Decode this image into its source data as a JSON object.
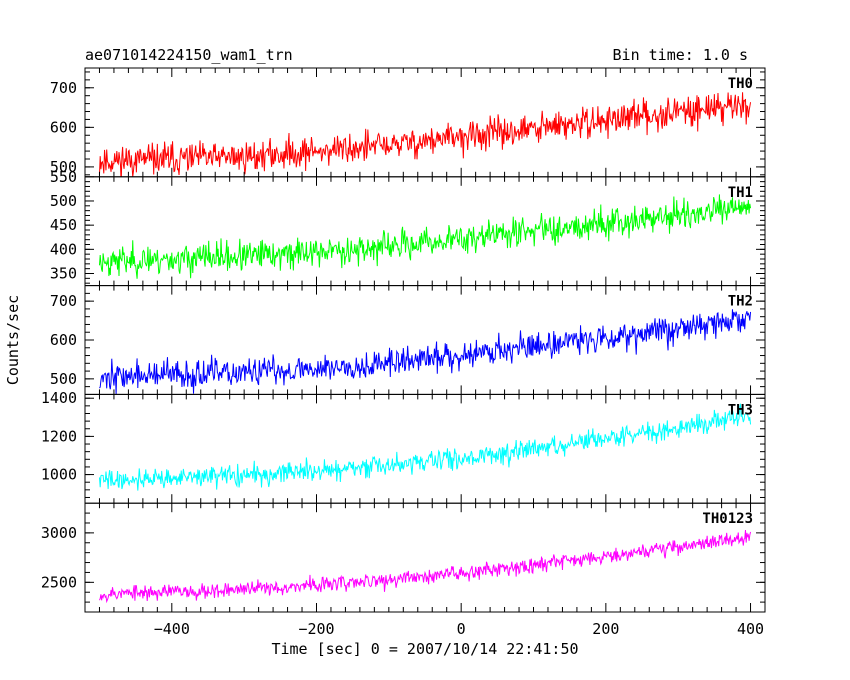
{
  "chart_data": {
    "type": "line",
    "title": "ae071014224150_wam1_trn",
    "bin_time_label": "Bin time: 1.0 s",
    "xlabel": "Time [sec] 0 = 2007/10/14 22:41:50",
    "ylabel": "Counts/sec",
    "x_range": [
      -500,
      400
    ],
    "xlim": [
      -520,
      420
    ],
    "x_ticks": [
      -400,
      -200,
      0,
      200,
      400
    ],
    "x_tick_labels": [
      "−400",
      "−200",
      "0",
      "200",
      "400"
    ],
    "grid": false,
    "panels": [
      {
        "name": "TH0",
        "color": "#ff0000",
        "ylim": [
          475,
          750
        ],
        "y_ticks": [
          500,
          600,
          700
        ],
        "y_tick_labels": [
          "500",
          "600",
          "700"
        ],
        "trend": [
          [
            -500,
            515
          ],
          [
            -300,
            525
          ],
          [
            -100,
            555
          ],
          [
            100,
            595
          ],
          [
            300,
            640
          ],
          [
            400,
            660
          ]
        ],
        "noise": 28,
        "seed": 11
      },
      {
        "name": "TH1",
        "color": "#00ff00",
        "ylim": [
          325,
          550
        ],
        "y_ticks": [
          350,
          400,
          450,
          500,
          550
        ],
        "y_tick_labels": [
          "350",
          "400",
          "450",
          "500",
          "550"
        ],
        "trend": [
          [
            -500,
            375
          ],
          [
            -300,
            385
          ],
          [
            -100,
            405
          ],
          [
            100,
            440
          ],
          [
            300,
            470
          ],
          [
            400,
            485
          ]
        ],
        "noise": 22,
        "seed": 23
      },
      {
        "name": "TH2",
        "color": "#0000ff",
        "ylim": [
          460,
          740
        ],
        "y_ticks": [
          500,
          600,
          700
        ],
        "y_tick_labels": [
          "500",
          "600",
          "700"
        ],
        "trend": [
          [
            -500,
            505
          ],
          [
            -300,
            515
          ],
          [
            -100,
            540
          ],
          [
            100,
            585
          ],
          [
            300,
            630
          ],
          [
            400,
            655
          ]
        ],
        "noise": 26,
        "seed": 37
      },
      {
        "name": "TH3",
        "color": "#00ffff",
        "ylim": [
          850,
          1420
        ],
        "y_ticks": [
          1000,
          1200,
          1400
        ],
        "y_tick_labels": [
          "1000",
          "1200",
          "1400"
        ],
        "trend": [
          [
            -500,
            970
          ],
          [
            -300,
            995
          ],
          [
            -100,
            1045
          ],
          [
            100,
            1130
          ],
          [
            300,
            1245
          ],
          [
            400,
            1315
          ]
        ],
        "noise": 38,
        "seed": 41
      },
      {
        "name": "TH0123",
        "color": "#ff00ff",
        "ylim": [
          2200,
          3300
        ],
        "y_ticks": [
          2500,
          3000
        ],
        "y_tick_labels": [
          "2500",
          "3000"
        ],
        "trend": [
          [
            -500,
            2380
          ],
          [
            -300,
            2430
          ],
          [
            -100,
            2520
          ],
          [
            100,
            2680
          ],
          [
            300,
            2860
          ],
          [
            400,
            2960
          ]
        ],
        "noise": 55,
        "seed": 53
      }
    ]
  }
}
